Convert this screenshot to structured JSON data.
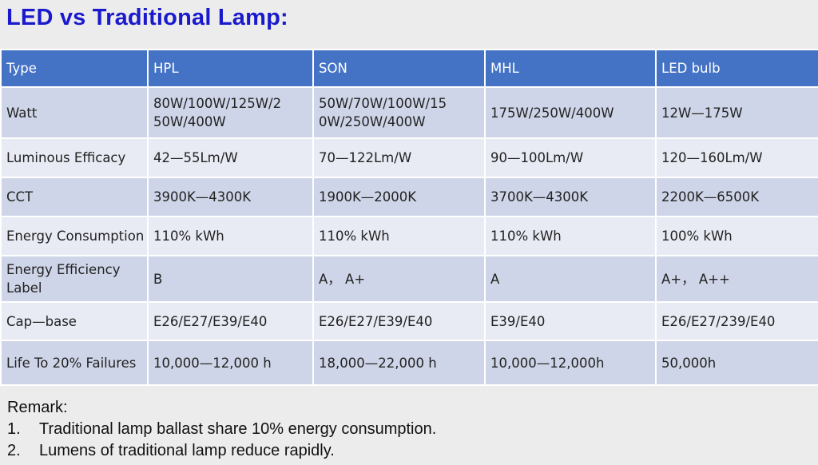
{
  "title": "LED vs Traditional Lamp:",
  "table": {
    "headers": [
      "Type",
      "HPL",
      "SON",
      "MHL",
      "LED  bulb"
    ],
    "rows": [
      {
        "label": "Watt",
        "cells": [
          "80W/100W/125W/2 50W/400W",
          "50W/70W/100W/15 0W/250W/400W",
          "175W/250W/400W",
          "12W—175W"
        ]
      },
      {
        "label": "Luminous  Efficacy",
        "cells": [
          "42—55Lm/W",
          "70—122Lm/W",
          "90—100Lm/W",
          "120—160Lm/W"
        ]
      },
      {
        "label": "CCT",
        "cells": [
          "3900K—4300K",
          "1900K—2000K",
          "3700K—4300K",
          "2200K—6500K"
        ]
      },
      {
        "label": "Energy  Consumption",
        "cells": [
          "110%  kWh",
          "110%  kWh",
          "110%  kWh",
          "100%  kWh"
        ]
      },
      {
        "label": "Energy  Efficiency Label",
        "cells": [
          "B",
          "A， A+",
          "A",
          "A+， A++"
        ]
      },
      {
        "label": "Cap—base",
        "cells": [
          "E26/E27/E39/E40",
          "E26/E27/E39/E40",
          "E39/E40",
          "E26/E27/239/E40"
        ]
      },
      {
        "label": "Life  To  20% Failures",
        "cells": [
          "10,000—12,000  h",
          "18,000—22,000  h",
          "10,000—12,000h",
          "50,000h"
        ]
      }
    ]
  },
  "remark": {
    "heading": "Remark:",
    "items": [
      {
        "num": "1.",
        "text": "Traditional lamp ballast share 10% energy consumption."
      },
      {
        "num": "2.",
        "text": "Lumens of traditional lamp reduce rapidly."
      }
    ]
  },
  "colors": {
    "title": "#1a1acc",
    "header_bg": "#4472c4",
    "row_dark": "#cfd5e8",
    "row_light": "#e8ebf4",
    "highlight_text": "#1a1ab8"
  }
}
